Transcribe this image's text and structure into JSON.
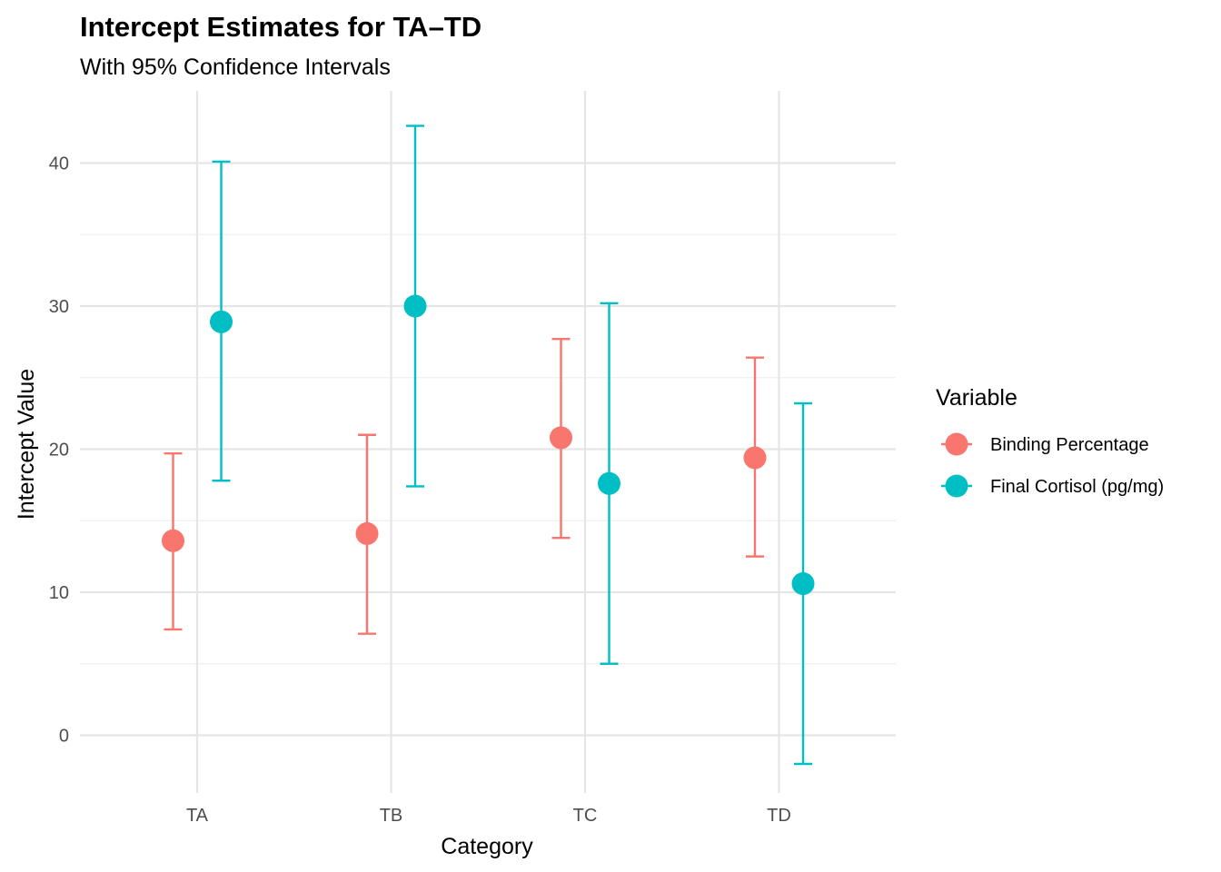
{
  "chart_data": {
    "type": "scatter",
    "title": "Intercept Estimates for TA–TD",
    "subtitle": "With 95% Confidence Intervals",
    "xlabel": "Category",
    "ylabel": "Intercept Value",
    "categories": [
      "TA",
      "TB",
      "TC",
      "TD"
    ],
    "ylim": [
      -4,
      45
    ],
    "yticks": [
      0,
      10,
      20,
      30,
      40
    ],
    "yticks_labels": [
      "0",
      "10",
      "20",
      "30",
      "40"
    ],
    "grid": true,
    "legend": {
      "title": "Variable",
      "placement": "right"
    },
    "series": [
      {
        "name": "Binding Percentage",
        "color": "#F8766D",
        "values": [
          13.6,
          14.1,
          20.8,
          19.4
        ],
        "lower": [
          7.4,
          7.1,
          13.8,
          12.5
        ],
        "upper": [
          19.7,
          21.0,
          27.7,
          26.4
        ]
      },
      {
        "name": "Final Cortisol (pg/mg)",
        "color": "#00BFC4",
        "values": [
          28.9,
          30.0,
          17.6,
          10.6
        ],
        "lower": [
          17.8,
          17.4,
          5.0,
          -2.0
        ],
        "upper": [
          40.1,
          42.6,
          30.2,
          23.2
        ]
      }
    ]
  }
}
